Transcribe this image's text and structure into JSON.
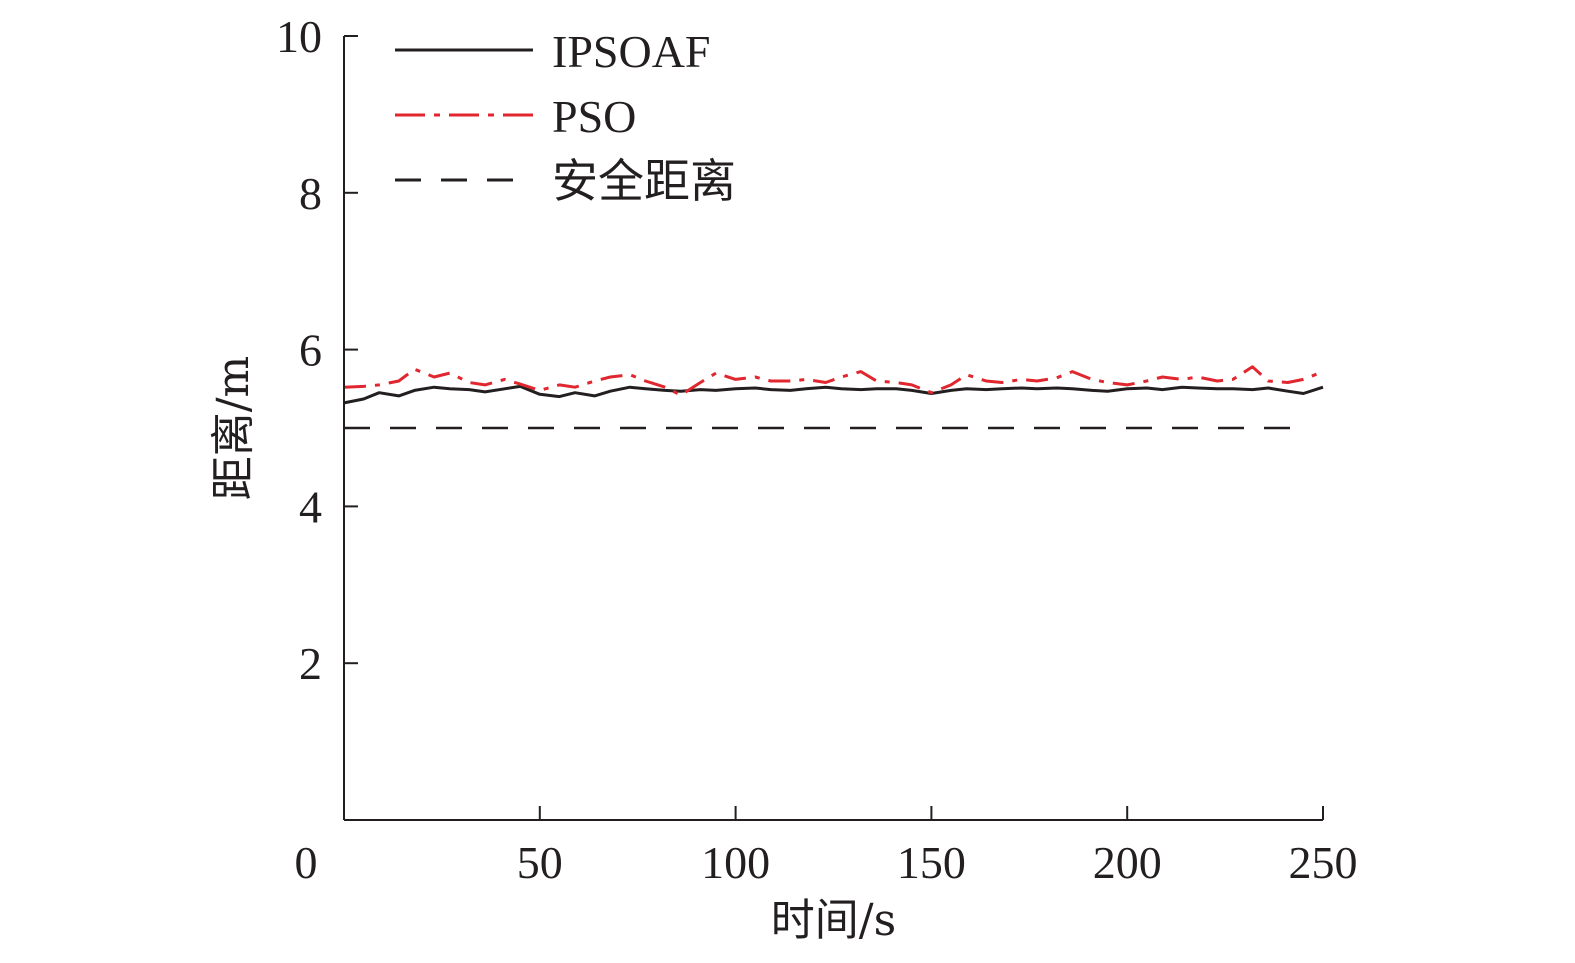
{
  "chart_data": {
    "type": "line",
    "xlabel": "时间/s",
    "ylabel": "距离/m",
    "xlim": [
      0,
      250
    ],
    "ylim": [
      0,
      10
    ],
    "x_ticks": [
      "0",
      "50",
      "100",
      "150",
      "200",
      "250"
    ],
    "x_tick_values": [
      0,
      50,
      100,
      150,
      200,
      250
    ],
    "y_ticks": [
      "2",
      "4",
      "6",
      "8",
      "10"
    ],
    "y_tick_values": [
      2,
      4,
      6,
      8,
      10
    ],
    "grid": false,
    "legend_position": "top-left",
    "x": [
      0,
      5,
      9,
      14,
      18,
      23,
      27,
      32,
      36,
      41,
      45,
      50,
      55,
      59,
      64,
      68,
      73,
      77,
      82,
      86,
      91,
      95,
      100,
      105,
      109,
      114,
      118,
      123,
      127,
      132,
      136,
      141,
      145,
      150,
      155,
      159,
      164,
      168,
      173,
      177,
      182,
      186,
      191,
      195,
      200,
      205,
      209,
      214,
      218,
      223,
      227,
      232,
      236,
      241,
      245,
      250
    ],
    "series": [
      {
        "name": "IPSOAF",
        "color": "#231f20",
        "style": "solid",
        "values": [
          5.32,
          5.37,
          5.45,
          5.41,
          5.48,
          5.52,
          5.5,
          5.49,
          5.46,
          5.5,
          5.53,
          5.43,
          5.4,
          5.45,
          5.41,
          5.47,
          5.52,
          5.5,
          5.48,
          5.47,
          5.49,
          5.48,
          5.5,
          5.51,
          5.49,
          5.48,
          5.5,
          5.52,
          5.5,
          5.49,
          5.5,
          5.5,
          5.48,
          5.44,
          5.48,
          5.5,
          5.49,
          5.5,
          5.51,
          5.5,
          5.51,
          5.5,
          5.48,
          5.47,
          5.5,
          5.51,
          5.49,
          5.52,
          5.51,
          5.5,
          5.5,
          5.49,
          5.51,
          5.47,
          5.44,
          5.52
        ]
      },
      {
        "name": "PSO",
        "color": "#e0262e",
        "style": "dashdot",
        "values": [
          5.52,
          5.53,
          5.55,
          5.6,
          5.75,
          5.65,
          5.7,
          5.58,
          5.55,
          5.62,
          5.56,
          5.48,
          5.55,
          5.52,
          5.6,
          5.65,
          5.68,
          5.6,
          5.52,
          5.42,
          5.58,
          5.7,
          5.62,
          5.65,
          5.6,
          5.6,
          5.62,
          5.58,
          5.65,
          5.72,
          5.6,
          5.58,
          5.55,
          5.45,
          5.55,
          5.68,
          5.6,
          5.58,
          5.62,
          5.6,
          5.64,
          5.72,
          5.62,
          5.58,
          5.55,
          5.6,
          5.65,
          5.62,
          5.65,
          5.6,
          5.62,
          5.78,
          5.6,
          5.58,
          5.62,
          5.72
        ]
      },
      {
        "name": "安全距离",
        "color": "#231f20",
        "style": "dashed",
        "x": [
          0,
          242
        ],
        "values": [
          5.0,
          5.0
        ]
      }
    ]
  }
}
